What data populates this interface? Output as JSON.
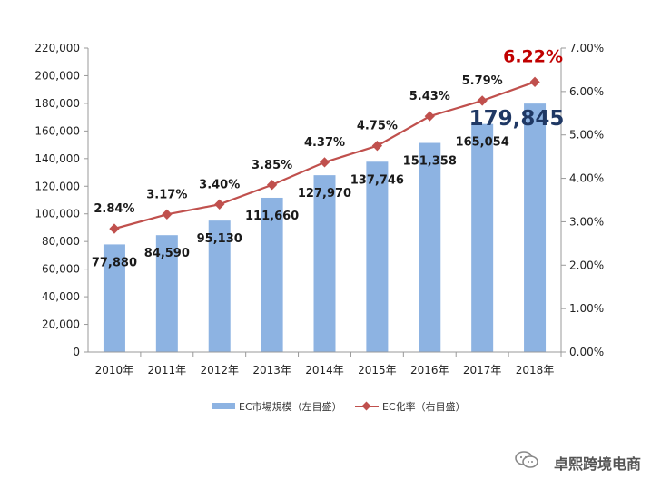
{
  "chart_data": {
    "type": "bar+line",
    "categories": [
      "2010年",
      "2011年",
      "2012年",
      "2013年",
      "2014年",
      "2015年",
      "2016年",
      "2017年",
      "2018年"
    ],
    "series": [
      {
        "name": "EC市場規模（左目盛）",
        "type": "bar",
        "axis": "left",
        "values": [
          77880,
          84590,
          95130,
          111660,
          127970,
          137746,
          151358,
          165054,
          179845
        ],
        "labels": [
          "77,880",
          "84,590",
          "95,130",
          "111,660",
          "127,970",
          "137,746",
          "151,358",
          "165,054",
          "179,845"
        ],
        "color": "#8db3e2"
      },
      {
        "name": "EC化率（右目盛）",
        "type": "line",
        "axis": "right",
        "values": [
          2.84,
          3.17,
          3.4,
          3.85,
          4.37,
          4.75,
          5.43,
          5.79,
          6.22
        ],
        "labels": [
          "2.84%",
          "3.17%",
          "3.40%",
          "3.85%",
          "4.37%",
          "4.75%",
          "5.43%",
          "5.79%",
          "6.22%"
        ],
        "color": "#c0504d"
      }
    ],
    "y_left": {
      "min": 0,
      "max": 220000,
      "step": 20000,
      "ticks": [
        "0",
        "20,000",
        "40,000",
        "60,000",
        "80,000",
        "100,000",
        "120,000",
        "140,000",
        "160,000",
        "180,000",
        "200,000",
        "220,000"
      ]
    },
    "y_right": {
      "min": 0,
      "max": 7,
      "step": 1,
      "ticks": [
        "0.00%",
        "1.00%",
        "2.00%",
        "3.00%",
        "4.00%",
        "5.00%",
        "6.00%",
        "7.00%"
      ]
    },
    "highlight": {
      "bar_label_color": "#1f3864",
      "rate_label_color": "#c00000"
    },
    "legend_position": "bottom",
    "grid": false
  },
  "watermark": {
    "text": "卓熙跨境电商",
    "icon": "wechat-icon"
  }
}
